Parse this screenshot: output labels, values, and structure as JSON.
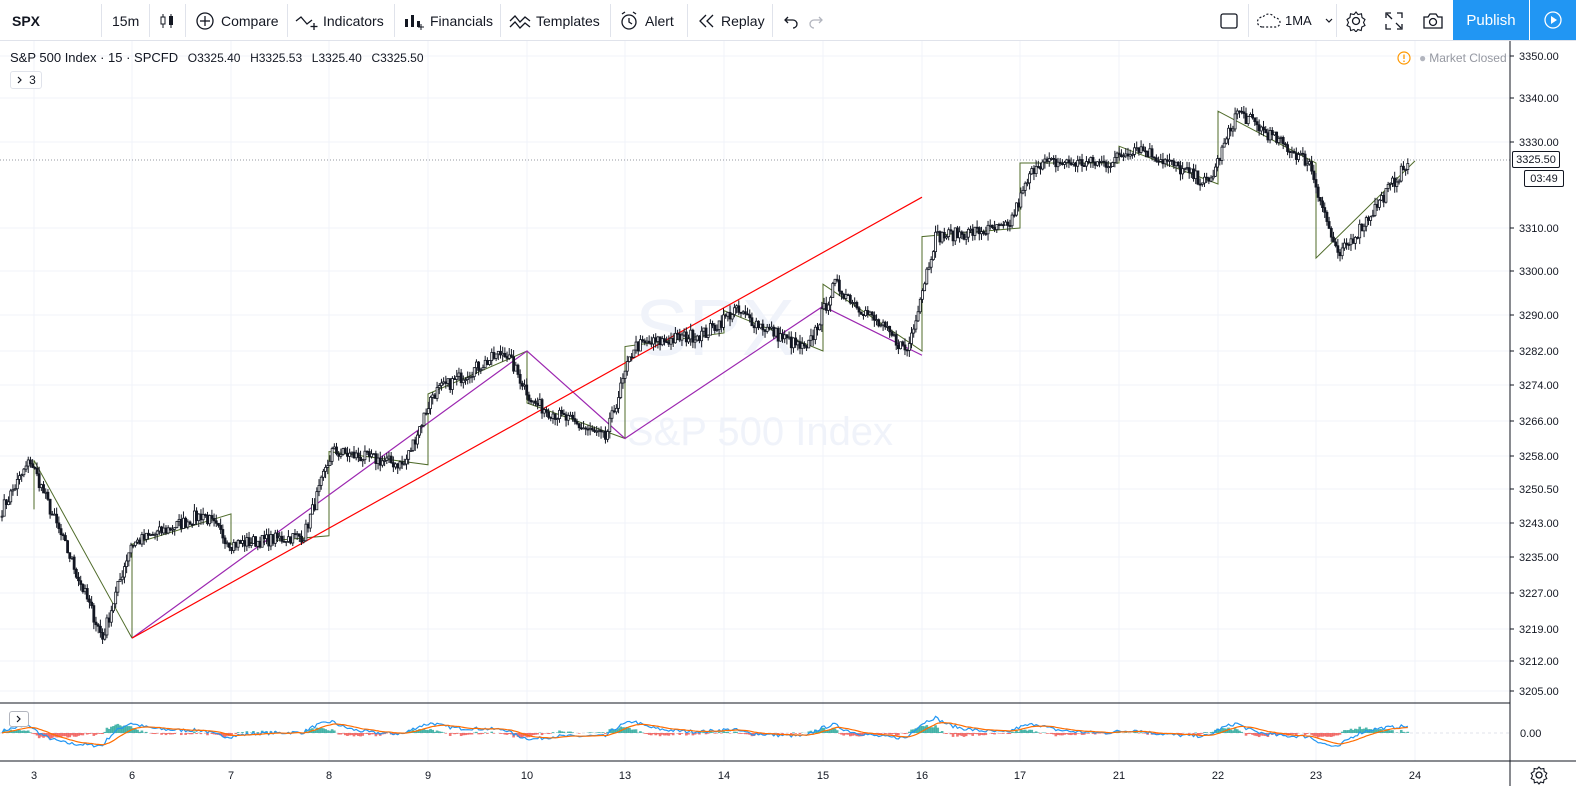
{
  "toolbar": {
    "symbol": "SPX",
    "interval": "15m",
    "compare": "Compare",
    "indicators": "Indicators",
    "financials": "Financials",
    "templates": "Templates",
    "alert": "Alert",
    "replay": "Replay",
    "study": "1MA",
    "publish": "Publish"
  },
  "legend": {
    "title": "S&P 500 Index · 15 · SPCFD",
    "open": "O3325.40",
    "high": "H3325.53",
    "low": "L3325.40",
    "close": "C3325.50",
    "collapsed_count": "3"
  },
  "status": {
    "market": "Market Closed"
  },
  "watermark": {
    "symbol": "SPX",
    "name": "S&P 500 Index"
  },
  "price_tag": {
    "last": "3325.50",
    "countdown": "03:49"
  },
  "indicator_pane": {
    "zero_label": "0.00",
    "colors": {
      "macd": "#2196f3",
      "signal": "#ff6d00",
      "hist_up": "#26a69a",
      "hist_down": "#ef5350"
    }
  },
  "colors": {
    "accent": "#2196f3",
    "trendline": "#ff0000",
    "zigzag_purple": "#9c27b0",
    "zigzag_green": "#4f6b2a"
  },
  "chart_data": {
    "type": "candlestick",
    "title": "S&P 500 Index",
    "interval": "15",
    "x_ticks": [
      "3",
      "6",
      "7",
      "8",
      "9",
      "10",
      "13",
      "14",
      "15",
      "16",
      "17",
      "21",
      "22",
      "23",
      "24"
    ],
    "y_ticks": [
      "3350.00",
      "3340.00",
      "3330.00",
      "3310.00",
      "3300.00",
      "3290.00",
      "3282.00",
      "3274.00",
      "3266.00",
      "3258.00",
      "3250.50",
      "3243.00",
      "3235.00",
      "3227.00",
      "3219.00",
      "3212.00",
      "3205.00"
    ],
    "ylim": [
      3202,
      3352
    ],
    "last_price": 3325.5,
    "price_path": [
      [
        "3",
        3246
      ],
      [
        "3",
        3257
      ],
      [
        "6",
        3217
      ],
      [
        "6",
        3238
      ],
      [
        "7",
        3245
      ],
      [
        "7",
        3238
      ],
      [
        "8",
        3240
      ],
      [
        "8",
        3259
      ],
      [
        "9",
        3256
      ],
      [
        "9",
        3272
      ],
      [
        "10",
        3282
      ],
      [
        "10",
        3270
      ],
      [
        "13",
        3262
      ],
      [
        "13",
        3283
      ],
      [
        "14",
        3286
      ],
      [
        "14",
        3291
      ],
      [
        "15",
        3282
      ],
      [
        "15",
        3297
      ],
      [
        "16",
        3282
      ],
      [
        "16",
        3308
      ],
      [
        "17",
        3310
      ],
      [
        "17",
        3325
      ],
      [
        "21",
        3325
      ],
      [
        "21",
        3329
      ],
      [
        "22",
        3320
      ],
      [
        "22",
        3337
      ],
      [
        "23",
        3325
      ],
      [
        "23",
        3303
      ],
      [
        "24",
        3325.5
      ]
    ],
    "zigzag_purple": [
      [
        "6",
        3217
      ],
      [
        "10",
        3282
      ],
      [
        "13",
        3262
      ],
      [
        "15",
        3292
      ],
      [
        "16",
        3281
      ]
    ],
    "trendline_red": [
      [
        "6",
        3217
      ],
      [
        "16",
        3317
      ]
    ],
    "indicator": {
      "type": "MACD",
      "zero_label": "0.00"
    }
  }
}
